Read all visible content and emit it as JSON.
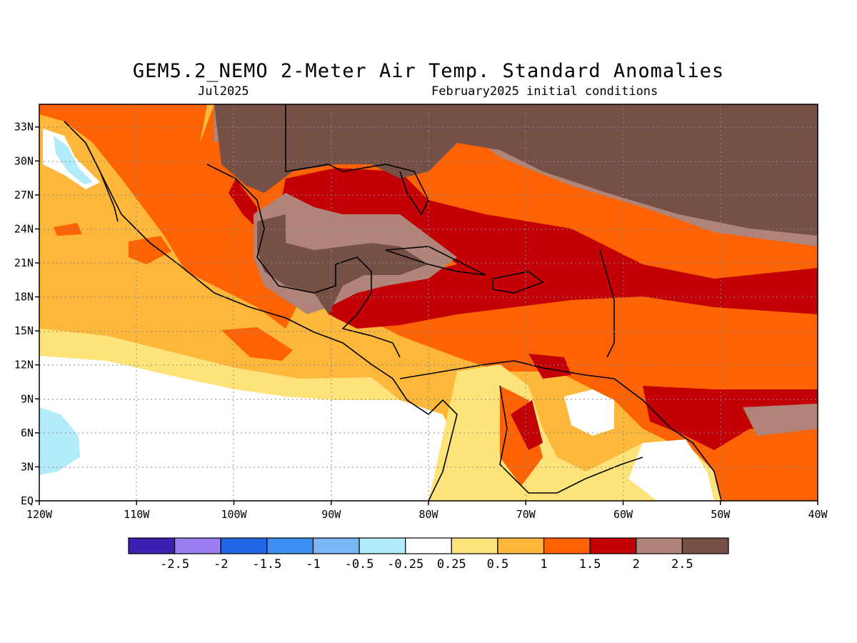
{
  "title": "GEM5.2_NEMO 2-Meter Air Temp. Standard Anomalies",
  "valid_month": "Jul2025",
  "init_conditions": "February2025 initial conditions",
  "map": {
    "lon_range": [
      -120,
      -40
    ],
    "lat_range": [
      0,
      35
    ],
    "lat_labels": [
      "EQ",
      "3N",
      "6N",
      "9N",
      "12N",
      "15N",
      "18N",
      "21N",
      "24N",
      "27N",
      "30N",
      "33N"
    ],
    "lon_labels": [
      "120W",
      "110W",
      "100W",
      "90W",
      "80W",
      "70W",
      "60W",
      "50W",
      "40W"
    ],
    "grid": "dotted"
  },
  "colorbar": {
    "colors": [
      "#3d1fb4",
      "#9b7ff2",
      "#2267e6",
      "#3b90f2",
      "#7ab5f5",
      "#b2ebfa",
      "#ffffff",
      "#fee37a",
      "#fdb73b",
      "#fd6304",
      "#c20005",
      "#b1847a",
      "#765046"
    ],
    "labels": [
      "-2.5",
      "-2",
      "-1.5",
      "-1",
      "-0.5",
      "-0.25",
      "0.25",
      "0.5",
      "1",
      "1.5",
      "2",
      "2.5"
    ]
  }
}
